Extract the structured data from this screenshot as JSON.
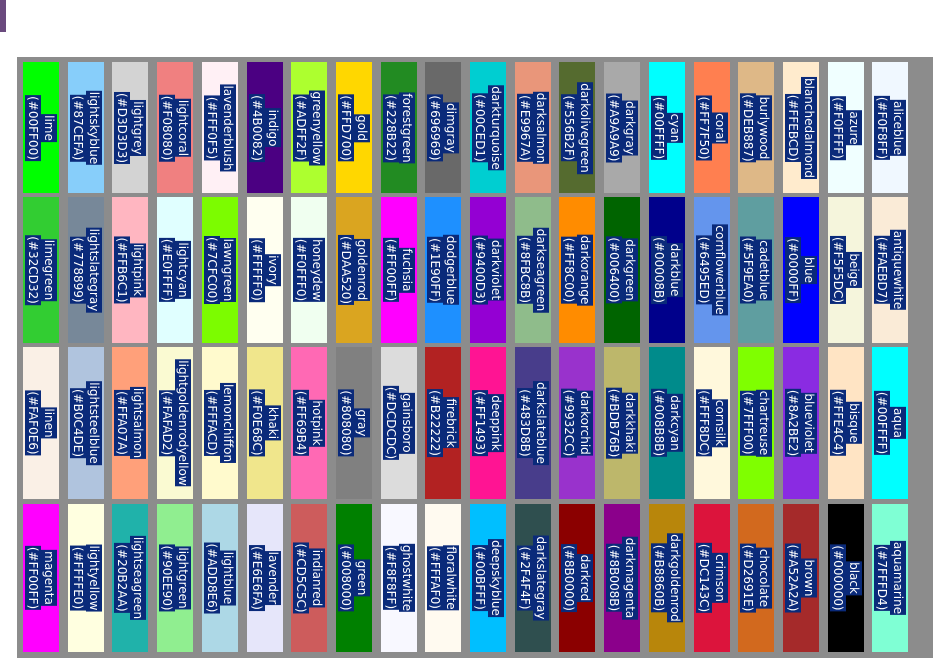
{
  "rows": [
    [
      {
        "name": "lime",
        "hex": "#00FF00",
        "color": "#00FF00"
      },
      {
        "name": "lightskyblue",
        "hex": "#87CEFA",
        "color": "#87CEFA"
      },
      {
        "name": "lightgrey",
        "hex": "#D3D3D3",
        "color": "#D3D3D3"
      },
      {
        "name": "lightcoral",
        "hex": "#F08080",
        "color": "#F08080"
      },
      {
        "name": "lavenderblush",
        "hex": "#FFF0F5",
        "color": "#FFF0F5"
      },
      {
        "name": "indigo",
        "hex": "#4B0082",
        "color": "#4B0082"
      },
      {
        "name": "greenyellow",
        "hex": "#ADFF2F",
        "color": "#ADFF2F"
      },
      {
        "name": "gold",
        "hex": "#FFD700",
        "color": "#FFD700"
      },
      {
        "name": "forestgreen",
        "hex": "#228B22",
        "color": "#228B22"
      },
      {
        "name": "dimgray",
        "hex": "#696969",
        "color": "#696969"
      },
      {
        "name": "darkturquoise",
        "hex": "#00CED1",
        "color": "#00CED1"
      },
      {
        "name": "darksalmon",
        "hex": "#E9967A",
        "color": "#E9967A"
      },
      {
        "name": "darkolivegreen",
        "hex": "#556B2F",
        "color": "#556B2F"
      },
      {
        "name": "darkgray",
        "hex": "#A9A9A9",
        "color": "#A9A9A9"
      },
      {
        "name": "cyan",
        "hex": "#00FFFF",
        "color": "#00FFFF"
      },
      {
        "name": "coral",
        "hex": "#FF7F50",
        "color": "#FF7F50"
      },
      {
        "name": "burlywood",
        "hex": "#DEB887",
        "color": "#DEB887"
      },
      {
        "name": "blanchedalmond",
        "hex": "#FFEBCD",
        "color": "#FFEBCD"
      },
      {
        "name": "azure",
        "hex": "#F0FFFF",
        "color": "#F0FFFF"
      },
      {
        "name": "aliceblue",
        "hex": "#F0F8FF",
        "color": "#F0F8FF"
      }
    ],
    [
      {
        "name": "limegreen",
        "hex": "#32CD32",
        "color": "#32CD32"
      },
      {
        "name": "lightslategray",
        "hex": "#778899",
        "color": "#778899"
      },
      {
        "name": "lightpink",
        "hex": "#FFB6C1",
        "color": "#FFB6C1"
      },
      {
        "name": "lightcyan",
        "hex": "#E0FFFF",
        "color": "#E0FFFF"
      },
      {
        "name": "lawngreen",
        "hex": "#7CFC00",
        "color": "#7CFC00"
      },
      {
        "name": "ivory",
        "hex": "#FFFFF0",
        "color": "#FFFFF0"
      },
      {
        "name": "honeydew",
        "hex": "#F0FFF0",
        "color": "#F0FFF0"
      },
      {
        "name": "goldenrod",
        "hex": "#DAA520",
        "color": "#DAA520"
      },
      {
        "name": "fuchsia",
        "hex": "#FF00FF",
        "color": "#FF00FF"
      },
      {
        "name": "dodgerblue",
        "hex": "#1E90FF",
        "color": "#1E90FF"
      },
      {
        "name": "darkviolet",
        "hex": "#9400D3",
        "color": "#9400D3"
      },
      {
        "name": "darkseagreen",
        "hex": "#8FBC8B",
        "color": "#8FBC8B"
      },
      {
        "name": "darkorange",
        "hex": "#FF8C00",
        "color": "#FF8C00"
      },
      {
        "name": "darkgreen",
        "hex": "#006400",
        "color": "#006400"
      },
      {
        "name": "darkblue",
        "hex": "#00008B",
        "color": "#00008B"
      },
      {
        "name": "cornflowerblue",
        "hex": "#6495ED",
        "color": "#6495ED"
      },
      {
        "name": "cadetblue",
        "hex": "#5F9EA0",
        "color": "#5F9EA0"
      },
      {
        "name": "blue",
        "hex": "#0000FF",
        "color": "#0000FF"
      },
      {
        "name": "beige",
        "hex": "#F5F5DC",
        "color": "#F5F5DC"
      },
      {
        "name": "antiquewhite",
        "hex": "#FAEBD7",
        "color": "#FAEBD7"
      }
    ],
    [
      {
        "name": "linen",
        "hex": "#FAF0E6",
        "color": "#FAF0E6"
      },
      {
        "name": "lightsteelblue",
        "hex": "#B0C4DE",
        "color": "#B0C4DE"
      },
      {
        "name": "lightsalmon",
        "hex": "#FFA07A",
        "color": "#FFA07A"
      },
      {
        "name": "lightgoldenrodyellow",
        "hex": "#FAFAD2",
        "color": "#FAFAD2"
      },
      {
        "name": "lemonchiffon",
        "hex": "#FFFACD",
        "color": "#FFFACD"
      },
      {
        "name": "khaki",
        "hex": "#F0E68C",
        "color": "#F0E68C"
      },
      {
        "name": "hotpink",
        "hex": "#FF69B4",
        "color": "#FF69B4"
      },
      {
        "name": "gray",
        "hex": "#808080",
        "color": "#808080"
      },
      {
        "name": "gainsboro",
        "hex": "#DCDCDC",
        "color": "#DCDCDC"
      },
      {
        "name": "firebrick",
        "hex": "#B22222",
        "color": "#B22222"
      },
      {
        "name": "deeppink",
        "hex": "#FF1493",
        "color": "#FF1493"
      },
      {
        "name": "darkslateblue",
        "hex": "#483D8B",
        "color": "#483D8B"
      },
      {
        "name": "darkorchid",
        "hex": "#9932CC",
        "color": "#9932CC"
      },
      {
        "name": "darkkhaki",
        "hex": "#BDB76B",
        "color": "#BDB76B"
      },
      {
        "name": "darkcyan",
        "hex": "#008B8B",
        "color": "#008B8B"
      },
      {
        "name": "cornsilk",
        "hex": "#FFF8DC",
        "color": "#FFF8DC"
      },
      {
        "name": "chartreuse",
        "hex": "#7FFF00",
        "color": "#7FFF00"
      },
      {
        "name": "blueviolet",
        "hex": "#8A2BE2",
        "color": "#8A2BE2"
      },
      {
        "name": "bisque",
        "hex": "#FFE4C4",
        "color": "#FFE4C4"
      },
      {
        "name": "aqua",
        "hex": "#00FFFF",
        "color": "#00FFFF"
      }
    ],
    [
      {
        "name": "magenta",
        "hex": "#FF00FF",
        "color": "#FF00FF"
      },
      {
        "name": "lightyellow",
        "hex": "#FFFFE0",
        "color": "#FFFFE0"
      },
      {
        "name": "lightseagreen",
        "hex": "#20B2AA",
        "color": "#20B2AA"
      },
      {
        "name": "lightgreen",
        "hex": "#90EE90",
        "color": "#90EE90"
      },
      {
        "name": "lightblue",
        "hex": "#ADD8E6",
        "color": "#ADD8E6"
      },
      {
        "name": "lavender",
        "hex": "#E6E6FA",
        "color": "#E6E6FA"
      },
      {
        "name": "indianred",
        "hex": "#CD5C5C",
        "color": "#CD5C5C"
      },
      {
        "name": "green",
        "hex": "#008000",
        "color": "#008000"
      },
      {
        "name": "ghostwhite",
        "hex": "#F8F8FF",
        "color": "#F8F8FF"
      },
      {
        "name": "floralwhite",
        "hex": "#FFFAF0",
        "color": "#FFFAF0"
      },
      {
        "name": "deepskyblue",
        "hex": "#00BFFF",
        "color": "#00BFFF"
      },
      {
        "name": "darkslategray",
        "hex": "#2F4F4F",
        "color": "#2F4F4F"
      },
      {
        "name": "darkred",
        "hex": "#8B0000",
        "color": "#8B0000"
      },
      {
        "name": "darkmagenta",
        "hex": "#8B008B",
        "color": "#8B008B"
      },
      {
        "name": "darkgoldenrod",
        "hex": "#B8860B",
        "color": "#B8860B"
      },
      {
        "name": "crimson",
        "hex": "#DC143C",
        "color": "#DC143C"
      },
      {
        "name": "chocolate",
        "hex": "#D2691E",
        "color": "#D2691E"
      },
      {
        "name": "brown",
        "hex": "#A52A2A",
        "color": "#A52A2A"
      },
      {
        "name": "black",
        "hex": "#000000",
        "color": "#000000"
      },
      {
        "name": "aquamarine",
        "hex": "#7FFFD4",
        "color": "#7FFFD4"
      }
    ]
  ]
}
